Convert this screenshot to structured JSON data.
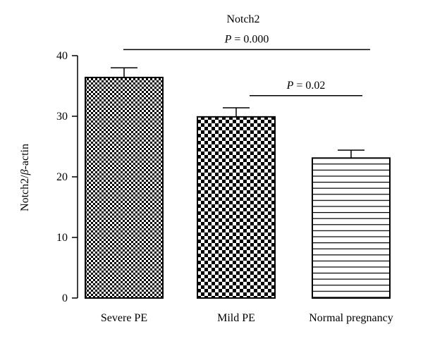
{
  "chart_data": {
    "type": "bar",
    "title": "Notch2",
    "xlabel": "",
    "ylabel": {
      "prefix": "Notch2/",
      "symbol": "β",
      "suffix": "-actin"
    },
    "categories": [
      "Severe PE",
      "Mild PE",
      "Normal pregnancy"
    ],
    "values": [
      36.4,
      29.9,
      23.1
    ],
    "errors": [
      1.6,
      1.5,
      1.3
    ],
    "patterns": [
      "fine-checker",
      "coarse-checker",
      "horizontal-lines"
    ],
    "ylim": [
      0,
      40
    ],
    "yticks": [
      0,
      10,
      20,
      30,
      40
    ],
    "grid": false,
    "legend": "none",
    "annotations": [
      {
        "from": "Severe PE",
        "to": "Normal pregnancy",
        "y": 41.0,
        "label": {
          "italic": "P",
          "rest": " = 0.000"
        }
      },
      {
        "from": "Mild PE",
        "to": "Normal pregnancy",
        "y": 33.4,
        "label": {
          "italic": "P",
          "rest": " = 0.02"
        }
      }
    ]
  }
}
